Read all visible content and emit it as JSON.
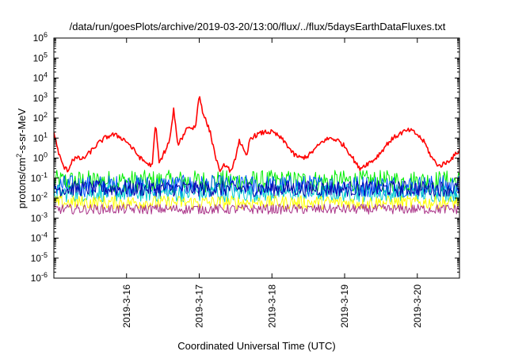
{
  "chart_data": {
    "type": "line",
    "title": "/data/run/goesPlots/archive/2019-03-20/13:00/flux/../flux/5daysEarthDataFluxes.txt",
    "xlabel": "Coordinated Universal Time (UTC)",
    "ylabel_base": "protons/cm",
    "ylabel_exp": "2",
    "ylabel_tail": "-s-sr-MeV",
    "y_scale": "log",
    "ylim_exp": [
      -6,
      6
    ],
    "y_ticks": [
      {
        "base": "10",
        "exp": "-6",
        "v": -6
      },
      {
        "base": "10",
        "exp": "-5",
        "v": -5
      },
      {
        "base": "10",
        "exp": "-4",
        "v": -4
      },
      {
        "base": "10",
        "exp": "-3",
        "v": -3
      },
      {
        "base": "10",
        "exp": "-2",
        "v": -2
      },
      {
        "base": "10",
        "exp": "-1",
        "v": -1
      },
      {
        "base": "10",
        "exp": "0",
        "v": 0
      },
      {
        "base": "10",
        "exp": "1",
        "v": 1
      },
      {
        "base": "10",
        "exp": "2",
        "v": 2
      },
      {
        "base": "10",
        "exp": "3",
        "v": 3
      },
      {
        "base": "10",
        "exp": "4",
        "v": 4
      },
      {
        "base": "10",
        "exp": "5",
        "v": 5
      },
      {
        "base": "10",
        "exp": "6",
        "v": 6
      }
    ],
    "xlim_days": [
      15.0,
      20.58
    ],
    "x_ticks": [
      {
        "label": "2019-3-16",
        "day": 16
      },
      {
        "label": "2019-3-17",
        "day": 17
      },
      {
        "label": "2019-3-18",
        "day": 18
      },
      {
        "label": "2019-3-19",
        "day": 19
      },
      {
        "label": "2019-3-20",
        "day": 20
      }
    ],
    "grid": false,
    "series": [
      {
        "color": "#ff0000",
        "noise": 0.12,
        "width": 1.6,
        "x": [
          15.0,
          15.05,
          15.1,
          15.15,
          15.2,
          15.25,
          15.3,
          15.4,
          15.5,
          15.6,
          15.7,
          15.8,
          15.9,
          16.0,
          16.1,
          16.2,
          16.3,
          16.35,
          16.4,
          16.45,
          16.5,
          16.55,
          16.6,
          16.65,
          16.7,
          16.75,
          16.8,
          16.85,
          16.9,
          16.95,
          17.0,
          17.05,
          17.1,
          17.15,
          17.2,
          17.25,
          17.3,
          17.35,
          17.4,
          17.45,
          17.5,
          17.55,
          17.6,
          17.65,
          17.7,
          17.8,
          17.9,
          18.0,
          18.1,
          18.2,
          18.3,
          18.4,
          18.5,
          18.6,
          18.7,
          18.8,
          18.9,
          19.0,
          19.1,
          19.2,
          19.3,
          19.4,
          19.5,
          19.6,
          19.7,
          19.8,
          19.9,
          20.0,
          20.1,
          20.2,
          20.3,
          20.4,
          20.5,
          20.58
        ],
        "y": [
          20,
          3,
          0.7,
          0.3,
          0.25,
          0.8,
          1.0,
          0.9,
          2.0,
          5.0,
          10,
          15,
          12,
          7,
          2.5,
          0.9,
          0.5,
          0.4,
          50,
          0.5,
          1.5,
          3,
          10,
          300,
          5,
          8,
          20,
          40,
          30,
          40,
          1500,
          200,
          60,
          20,
          3,
          0.5,
          0.2,
          0.5,
          0.3,
          0.2,
          1.2,
          8,
          3,
          1.0,
          10,
          15,
          20,
          20,
          12,
          5,
          1.5,
          1.0,
          1.3,
          3,
          7,
          10,
          8,
          4,
          1.2,
          0.3,
          0.5,
          0.8,
          2,
          6,
          12,
          20,
          25,
          15,
          6,
          1.0,
          0.4,
          0.6,
          1.2,
          2.5
        ]
      },
      {
        "color": "#00ee00",
        "level": 0.07,
        "noise": 0.55,
        "width": 1
      },
      {
        "color": "#0055ff",
        "level": 0.04,
        "noise": 0.55,
        "width": 1
      },
      {
        "color": "#00cccc",
        "level": 0.018,
        "noise": 0.45,
        "width": 1
      },
      {
        "color": "#0000aa",
        "level": 0.03,
        "noise": 0.4,
        "width": 1
      },
      {
        "color": "#ffff00",
        "level": 0.006,
        "noise": 0.35,
        "width": 1
      },
      {
        "color": "#aa3388",
        "level": 0.0028,
        "noise": 0.25,
        "width": 1
      }
    ]
  }
}
